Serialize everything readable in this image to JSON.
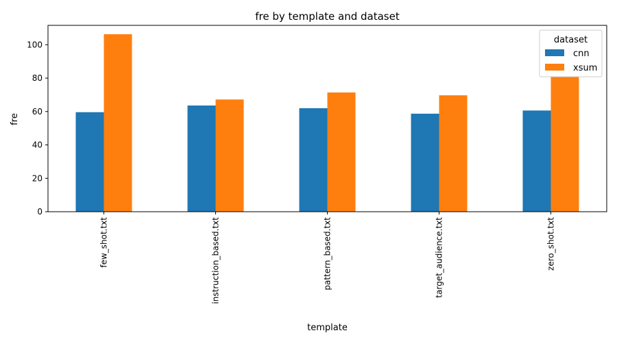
{
  "chart_data": {
    "type": "bar",
    "title": "fre by template and dataset",
    "xlabel": "template",
    "ylabel": "fre",
    "categories": [
      "few_shot.txt",
      "instruction_based.txt",
      "pattern_based.txt",
      "target_audience.txt",
      "zero_shot.txt"
    ],
    "series": [
      {
        "name": "cnn",
        "color": "#1f77b4",
        "values": [
          59.6,
          63.6,
          62.0,
          58.7,
          60.6
        ]
      },
      {
        "name": "xsum",
        "color": "#ff7f0e",
        "values": [
          106.3,
          67.2,
          71.4,
          69.7,
          80.8
        ]
      }
    ],
    "ylim": [
      0,
      111.6
    ],
    "yticks": [
      0,
      20,
      40,
      60,
      80,
      100
    ],
    "grid": false,
    "legend": {
      "title": "dataset",
      "placement": "top-right"
    }
  }
}
